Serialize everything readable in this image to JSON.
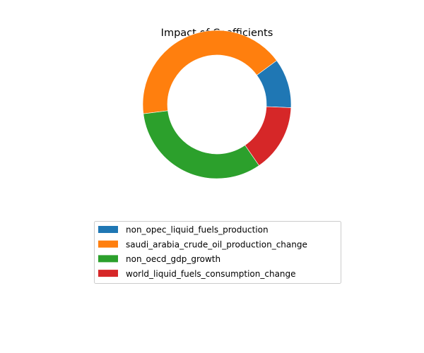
{
  "chart_data": {
    "type": "pie",
    "style": "donut",
    "title": "Impact of Coefficients",
    "legend_position": "bottom-center",
    "series": [
      {
        "name": "non_opec_liquid_fuels_production",
        "value": 0.108,
        "color": "#1f77b4"
      },
      {
        "name": "saudi_arabia_crude_oil_production_change",
        "value": 0.419,
        "color": "#ff7f0e"
      },
      {
        "name": "non_oecd_gdp_growth",
        "value": 0.326,
        "color": "#2ca02c"
      },
      {
        "name": "world_liquid_fuels_consumption_change",
        "value": 0.147,
        "color": "#d62728"
      }
    ]
  }
}
